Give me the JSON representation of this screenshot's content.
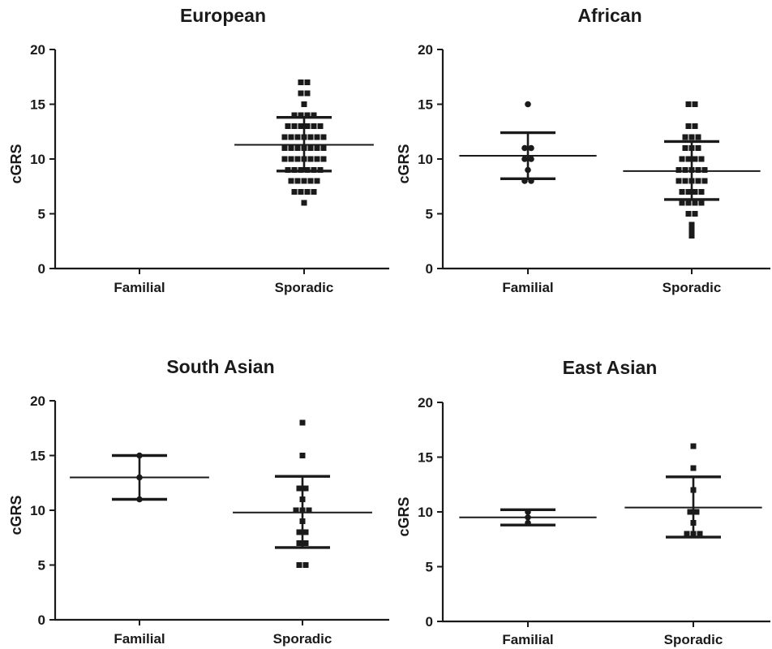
{
  "chart_data": [
    {
      "type": "scatter",
      "title": "European",
      "ylabel": "cGRS",
      "ylim": [
        0,
        20
      ],
      "yticks": [
        "0",
        "5",
        "10",
        "15",
        "20"
      ],
      "categories": [
        "Familial",
        "Sporadic"
      ],
      "groups": [
        {
          "name": "Familial",
          "marker": "circle",
          "points": [],
          "mean": null,
          "sd_low": null,
          "sd_high": null
        },
        {
          "name": "Sporadic",
          "marker": "square",
          "points": [
            6,
            7,
            7,
            7,
            7,
            8,
            8,
            8,
            8,
            8,
            9,
            9,
            9,
            9,
            9,
            9,
            10,
            10,
            10,
            10,
            10,
            10,
            10,
            11,
            11,
            11,
            11,
            11,
            11,
            11,
            12,
            12,
            12,
            12,
            12,
            12,
            12,
            13,
            13,
            13,
            13,
            13,
            13,
            14,
            14,
            14,
            14,
            15,
            16,
            16,
            17,
            17
          ],
          "mean": 11.3,
          "sd_low": 8.9,
          "sd_high": 13.8
        }
      ]
    },
    {
      "type": "scatter",
      "title": "African",
      "ylabel": "cGRS",
      "ylim": [
        0,
        20
      ],
      "yticks": [
        "0",
        "5",
        "10",
        "15",
        "20"
      ],
      "categories": [
        "Familial",
        "Sporadic"
      ],
      "groups": [
        {
          "name": "Familial",
          "marker": "circle",
          "points": [
            8,
            8,
            9,
            10,
            10,
            11,
            11,
            15
          ],
          "mean": 10.3,
          "sd_low": 8.2,
          "sd_high": 12.4
        },
        {
          "name": "Sporadic",
          "marker": "square",
          "points": [
            3,
            3.5,
            4,
            5,
            5,
            6,
            6,
            6,
            6,
            7,
            7,
            7,
            7,
            8,
            8,
            8,
            8,
            8,
            9,
            9,
            9,
            9,
            9,
            10,
            10,
            10,
            10,
            11,
            11,
            11,
            12,
            12,
            12,
            13,
            13,
            15,
            15
          ],
          "mean": 8.9,
          "sd_low": 6.3,
          "sd_high": 11.6
        }
      ]
    },
    {
      "type": "scatter",
      "title": "South Asian",
      "ylabel": "cGRS",
      "ylim": [
        0,
        20
      ],
      "yticks": [
        "0",
        "5",
        "10",
        "15",
        "20"
      ],
      "categories": [
        "Familial",
        "Sporadic"
      ],
      "groups": [
        {
          "name": "Familial",
          "marker": "circle",
          "points": [
            11,
            13,
            15
          ],
          "mean": 13,
          "sd_low": 11,
          "sd_high": 15
        },
        {
          "name": "Sporadic",
          "marker": "square",
          "points": [
            5,
            5,
            7,
            7,
            8,
            8,
            9,
            10,
            10,
            10,
            11,
            12,
            12,
            15,
            18
          ],
          "mean": 9.8,
          "sd_low": 6.6,
          "sd_high": 13.1
        }
      ]
    },
    {
      "type": "scatter",
      "title": "East Asian",
      "ylabel": "cGRS",
      "ylim": [
        0,
        20
      ],
      "yticks": [
        "0",
        "5",
        "10",
        "15",
        "20"
      ],
      "categories": [
        "Familial",
        "Sporadic"
      ],
      "groups": [
        {
          "name": "Familial",
          "marker": "circle",
          "points": [
            9,
            9.5,
            10
          ],
          "mean": 9.5,
          "sd_low": 8.8,
          "sd_high": 10.2
        },
        {
          "name": "Sporadic",
          "marker": "square",
          "points": [
            8,
            8,
            8,
            9,
            10,
            10,
            12,
            14,
            16
          ],
          "mean": 10.4,
          "sd_low": 7.7,
          "sd_high": 13.2
        }
      ]
    }
  ],
  "colors": {
    "ink": "#1a1a1a",
    "background": "#ffffff"
  }
}
